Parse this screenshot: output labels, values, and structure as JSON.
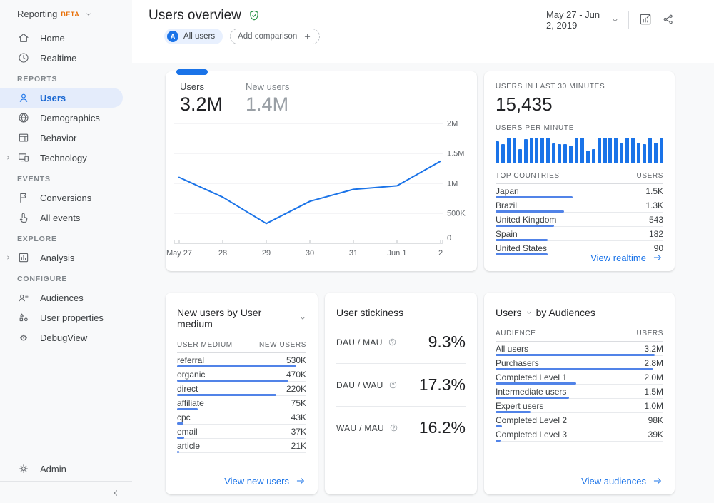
{
  "colors": {
    "accent": "#1a73e8",
    "table_bar_blue": "#5183e8",
    "active_item_bg": "#e4ecfb",
    "beta_orange": "#e8710a",
    "badge_green": "#1e8e3e",
    "background": "#f8f9fa"
  },
  "sidebar": {
    "brand": "Reporting",
    "brand_badge": "BETA",
    "sections": [
      {
        "label": "",
        "items": [
          {
            "icon": "home",
            "label": "Home"
          },
          {
            "icon": "clock",
            "label": "Realtime"
          }
        ]
      },
      {
        "label": "REPORTS",
        "items": [
          {
            "icon": "person",
            "label": "Users",
            "active": true
          },
          {
            "icon": "globe",
            "label": "Demographics"
          },
          {
            "icon": "window",
            "label": "Behavior"
          },
          {
            "icon": "devices",
            "label": "Technology",
            "expandable": true
          }
        ]
      },
      {
        "label": "EVENTS",
        "items": [
          {
            "icon": "flag",
            "label": "Conversions"
          },
          {
            "icon": "touch",
            "label": "All events"
          }
        ]
      },
      {
        "label": "EXPLORE",
        "items": [
          {
            "icon": "analysis",
            "label": "Analysis",
            "expandable": true
          }
        ]
      },
      {
        "label": "CONFIGURE",
        "items": [
          {
            "icon": "audiences",
            "label": "Audiences"
          },
          {
            "icon": "properties",
            "label": "User properties"
          },
          {
            "icon": "debug",
            "label": "DebugView"
          }
        ]
      }
    ],
    "admin_label": "Admin"
  },
  "header": {
    "title": "Users overview",
    "comparison_chip_avatar": "A",
    "comparison_chip": "All users",
    "add_comparison": "Add comparison",
    "date_range": "May 27 - Jun 2, 2019"
  },
  "main_chart": {
    "metrics": [
      {
        "label": "Users",
        "value": "3.2M"
      },
      {
        "label": "New users",
        "value": "1.4M"
      }
    ]
  },
  "chart_data": [
    {
      "type": "line",
      "title": "Users over time",
      "x": [
        "May 27",
        "28",
        "29",
        "30",
        "31",
        "Jun 1",
        "2"
      ],
      "series": [
        {
          "name": "Users",
          "values": [
            1100000,
            770000,
            330000,
            700000,
            900000,
            960000,
            1370000
          ]
        }
      ],
      "ylim": [
        0,
        2000000
      ],
      "yticks": [
        {
          "v": 0,
          "label": "0"
        },
        {
          "v": 500000,
          "label": "500K"
        },
        {
          "v": 1000000,
          "label": "1M"
        },
        {
          "v": 1500000,
          "label": "1.5M"
        },
        {
          "v": 2000000,
          "label": "2M"
        }
      ],
      "grid": true,
      "legend": "none",
      "line_color": "#1a73e8"
    },
    {
      "type": "bar",
      "title": "Users per minute",
      "values_relative": [
        0.85,
        0.75,
        1,
        1,
        0.55,
        0.95,
        1,
        1,
        1,
        1,
        0.78,
        0.75,
        0.75,
        0.7,
        1,
        1,
        0.5,
        0.56,
        1,
        1,
        1,
        1,
        0.8,
        1,
        1,
        0.8,
        0.75,
        1,
        0.8,
        1
      ],
      "bar_color": "#1a73e8",
      "ylabel": "",
      "xlabel": ""
    }
  ],
  "realtime_card": {
    "label_30min": "USERS IN LAST 30 MINUTES",
    "value_30min": "15,435",
    "label_per_minute": "USERS PER MINUTE",
    "countries_header": {
      "name": "TOP COUNTRIES",
      "value": "USERS"
    },
    "countries": [
      {
        "name": "Japan",
        "value": "1.5K",
        "bar": 0.46
      },
      {
        "name": "Brazil",
        "value": "1.3K",
        "bar": 0.41
      },
      {
        "name": "United Kingdom",
        "value": "543",
        "bar": 0.35
      },
      {
        "name": "Spain",
        "value": "182",
        "bar": 0.31
      },
      {
        "name": "United States",
        "value": "90",
        "bar": 0.31
      }
    ],
    "link": "View realtime"
  },
  "mediums_card": {
    "title": "New users by User medium",
    "header": {
      "name": "USER MEDIUM",
      "value": "NEW USERS"
    },
    "rows": [
      {
        "name": "referral",
        "value": "530K",
        "bar": 0.92
      },
      {
        "name": "organic",
        "value": "470K",
        "bar": 0.86
      },
      {
        "name": "direct",
        "value": "220K",
        "bar": 0.77
      },
      {
        "name": "affiliate",
        "value": "75K",
        "bar": 0.16
      },
      {
        "name": "cpc",
        "value": "43K",
        "bar": 0.05
      },
      {
        "name": "email",
        "value": "37K",
        "bar": 0.055
      },
      {
        "name": "article",
        "value": "21K",
        "bar": 0.018
      }
    ],
    "link": "View new users"
  },
  "stickiness_card": {
    "title": "User stickiness",
    "rows": [
      {
        "label": "DAU / MAU",
        "value": "9.3%"
      },
      {
        "label": "DAU / WAU",
        "value": "17.3%"
      },
      {
        "label": "WAU / MAU",
        "value": "16.2%"
      }
    ]
  },
  "audiences_card": {
    "title_prefix": "Users",
    "title_by": "by Audiences",
    "header": {
      "name": "AUDIENCE",
      "value": "USERS"
    },
    "rows": [
      {
        "name": "All users",
        "value": "3.2M",
        "bar": 0.95
      },
      {
        "name": "Purchasers",
        "value": "2.8M",
        "bar": 0.94
      },
      {
        "name": "Completed Level 1",
        "value": "2.0M",
        "bar": 0.48
      },
      {
        "name": "Intermediate users",
        "value": "1.5M",
        "bar": 0.44
      },
      {
        "name": "Expert users",
        "value": "1.0M",
        "bar": 0.21
      },
      {
        "name": "Completed Level 2",
        "value": "98K",
        "bar": 0.04
      },
      {
        "name": "Completed Level 3",
        "value": "39K",
        "bar": 0.03
      }
    ],
    "link": "View audiences"
  }
}
